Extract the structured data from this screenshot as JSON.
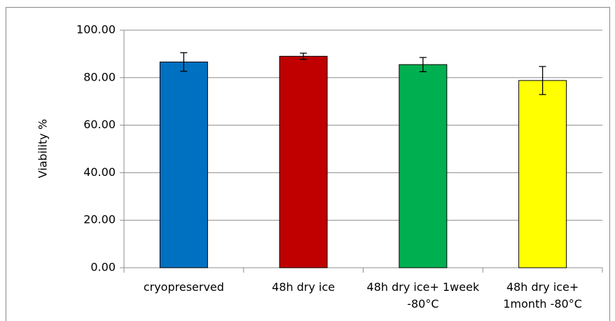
{
  "chart_data": {
    "type": "bar",
    "categories": [
      "cryopreserved",
      "48h dry ice",
      "48h dry ice+ 1week -80°C",
      "48h dry ice+ 1month -80°C"
    ],
    "values": [
      86.6,
      89.0,
      85.5,
      78.8
    ],
    "errors": [
      3.9,
      1.3,
      3.0,
      5.9
    ],
    "colors": [
      "#0070c0",
      "#c00000",
      "#00b050",
      "#ffff00"
    ],
    "ylabel": "Viability %",
    "ylim": [
      0,
      100
    ],
    "yticks": [
      {
        "value": 0,
        "label": "0.00"
      },
      {
        "value": 20,
        "label": "20.00"
      },
      {
        "value": 40,
        "label": "40.00"
      },
      {
        "value": 60,
        "label": "60.00"
      },
      {
        "value": 80,
        "label": "80.00"
      },
      {
        "value": 100,
        "label": "100.00"
      }
    ],
    "grid": true
  }
}
